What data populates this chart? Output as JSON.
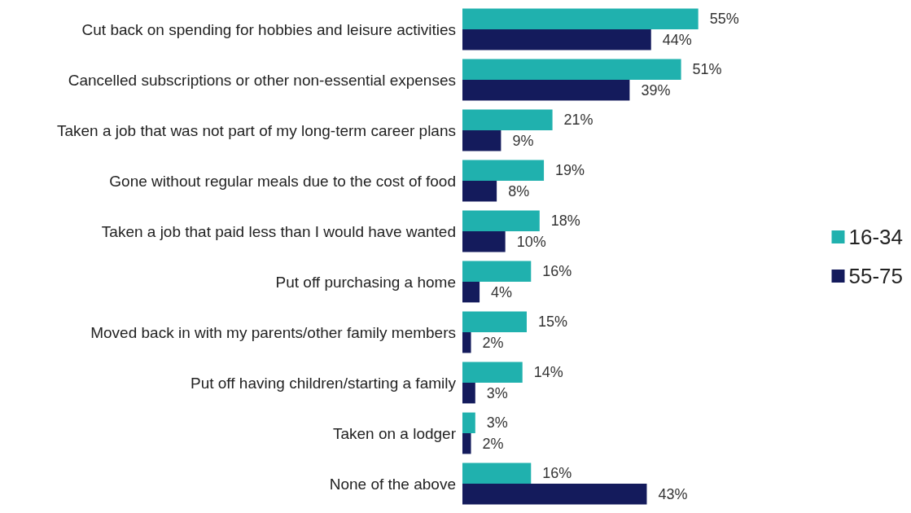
{
  "chart_data": {
    "type": "bar",
    "orientation": "horizontal",
    "legend": "right",
    "grid": false,
    "categories": [
      "Cut back on spending for hobbies and leisure activities",
      "Cancelled subscriptions or other non-essential expenses",
      "Taken a job that was not part of my long-term career plans",
      "Gone without regular meals due to the cost of food",
      "Taken a job that paid less than I would have wanted",
      "Put off purchasing a home",
      "Moved back in with my parents/other family members",
      "Put off having children/starting a family",
      "Taken on a lodger",
      "None of the above"
    ],
    "series": [
      {
        "name": "16-34",
        "color": "#20b1ae",
        "values": [
          55,
          51,
          21,
          19,
          18,
          16,
          15,
          14,
          3,
          16
        ],
        "value_labels": [
          "55%",
          "51%",
          "21%",
          "19%",
          "18%",
          "16%",
          "15%",
          "14%",
          "3%",
          "16%"
        ]
      },
      {
        "name": "55-75",
        "color": "#141b5c",
        "values": [
          44,
          39,
          9,
          8,
          10,
          4,
          2,
          3,
          2,
          43
        ],
        "value_labels": [
          "44%",
          "39%",
          "9%",
          "8%",
          "10%",
          "4%",
          "2%",
          "3%",
          "2%",
          "43%"
        ]
      }
    ]
  }
}
